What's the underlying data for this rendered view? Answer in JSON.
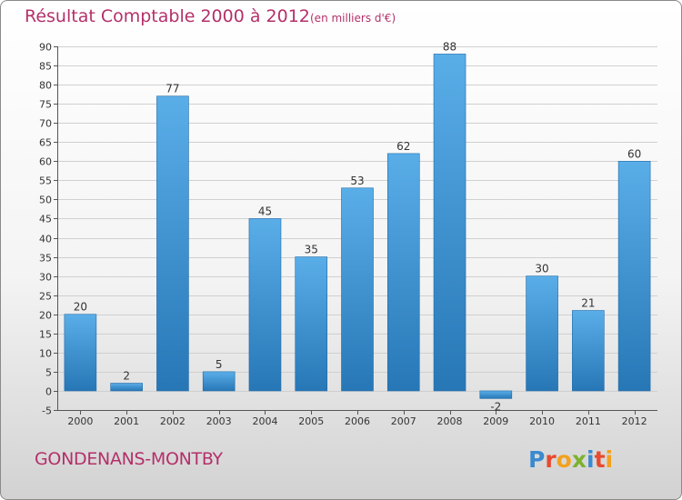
{
  "header": {
    "title": "Résultat Comptable 2000 à 2012",
    "subtitle": "(en milliers d'€)"
  },
  "footer": {
    "commune": "GONDENANS-MONTBY",
    "logo_letters": [
      "P",
      "r",
      "o",
      "x",
      "i",
      "t",
      "i"
    ]
  },
  "colors": {
    "title": "#b4306a",
    "bar_light": "#5aaee8",
    "bar_dark": "#2777b6",
    "grid": "#d0d0d0"
  },
  "chart_data": {
    "type": "bar",
    "title": "Résultat Comptable 2000 à 2012",
    "subtitle": "(en milliers d'€)",
    "xlabel": "",
    "ylabel": "",
    "categories": [
      "2000",
      "2001",
      "2002",
      "2003",
      "2004",
      "2005",
      "2006",
      "2007",
      "2008",
      "2009",
      "2010",
      "2011",
      "2012"
    ],
    "values": [
      20,
      2,
      77,
      5,
      45,
      35,
      53,
      62,
      88,
      -2,
      30,
      21,
      60
    ],
    "ylim": [
      -5,
      90
    ],
    "yticks": [
      -5,
      0,
      5,
      10,
      15,
      20,
      25,
      30,
      35,
      40,
      45,
      50,
      55,
      60,
      65,
      70,
      75,
      80,
      85,
      90
    ],
    "grid": true
  }
}
